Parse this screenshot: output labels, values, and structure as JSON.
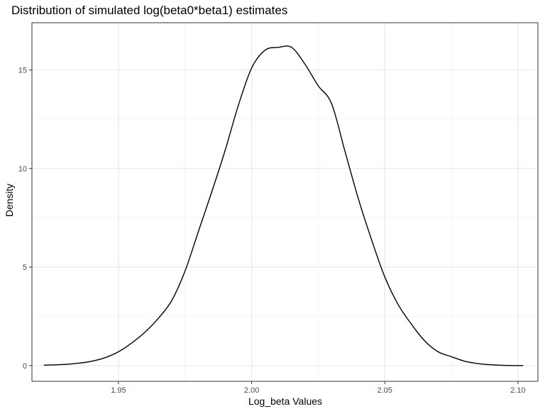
{
  "chart_data": {
    "type": "line",
    "title": "Distribution of simulated log(beta0*beta1) estimates",
    "xlabel": "Log_beta Values",
    "ylabel": "Density",
    "xlim": [
      1.9175,
      2.1075
    ],
    "ylim": [
      -0.8,
      17.4
    ],
    "x_ticks": [
      1.95,
      2.0,
      2.05,
      2.1
    ],
    "x_tick_labels": [
      "1.95",
      "2.00",
      "2.05",
      "2.10"
    ],
    "y_ticks": [
      0,
      5,
      10,
      15
    ],
    "y_tick_labels": [
      "0",
      "5",
      "10",
      "15"
    ],
    "grid": true,
    "legend": "none",
    "colors": {
      "line": "#000000",
      "panel_border": "#333333",
      "grid_major": "#ebebeb",
      "grid_minor": "#f5f5f5",
      "tick_label": "#4d4d4d"
    },
    "series": [
      {
        "x": [
          1.922,
          1.93,
          1.935,
          1.94,
          1.945,
          1.95,
          1.955,
          1.96,
          1.965,
          1.97,
          1.975,
          1.98,
          1.985,
          1.99,
          1.995,
          2.0,
          2.005,
          2.01,
          2.015,
          2.02,
          2.025,
          2.03,
          2.035,
          2.04,
          2.045,
          2.05,
          2.055,
          2.06,
          2.065,
          2.07,
          2.075,
          2.08,
          2.085,
          2.09,
          2.095,
          2.102
        ],
        "y": [
          0.02,
          0.06,
          0.12,
          0.22,
          0.4,
          0.7,
          1.15,
          1.7,
          2.4,
          3.3,
          4.8,
          6.8,
          8.8,
          10.9,
          13.2,
          15.1,
          16.0,
          16.15,
          16.15,
          15.3,
          14.2,
          13.3,
          10.9,
          8.5,
          6.4,
          4.5,
          3.1,
          2.1,
          1.25,
          0.7,
          0.45,
          0.22,
          0.1,
          0.04,
          0.01,
          0.0
        ]
      }
    ]
  }
}
